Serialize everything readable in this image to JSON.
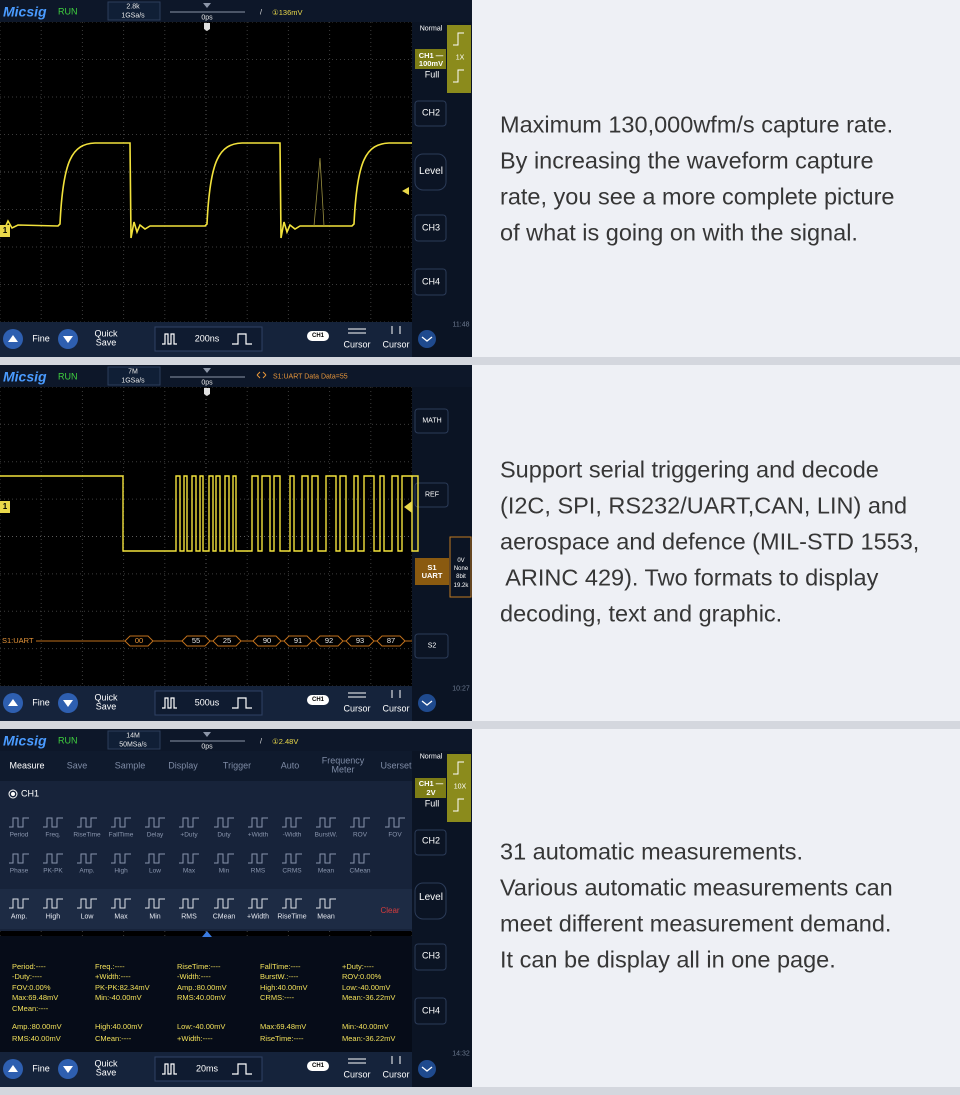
{
  "panels": [
    {
      "scope": {
        "brand": "Micsig",
        "state": "RUN",
        "memory": "2.8k",
        "rate": "1GSa/s",
        "delay": "0ps",
        "trigger_type": "/",
        "trigger": "①136mV",
        "sidebar": [
          "Normal",
          "CH1 —",
          "100mV",
          "1X",
          "Full",
          "CH2",
          "Level",
          "CH3",
          "CH4",
          "11:48"
        ],
        "channel_marker": "1",
        "bottom": {
          "fine": "Fine",
          "quick_save": "Quick Save",
          "timebase": "200ns",
          "channel": "CH1",
          "cursor_h": "Cursor",
          "cursor_v": "Cursor"
        }
      },
      "description": [
        "Maximum 130,000wfm/s capture rate.",
        "By increasing the waveform capture",
        "rate, you see a more complete picture",
        "of what is going on with the signal."
      ]
    },
    {
      "scope": {
        "brand": "Micsig",
        "state": "RUN",
        "memory": "7M",
        "rate": "1GSa/s",
        "delay": "0ps",
        "trigger": "S1:UART Data Data=55",
        "sidebar": [
          "MATH",
          "REF",
          "S1",
          "UART",
          "0V",
          "None",
          "8bit",
          "19.2k",
          "S2",
          "10:27"
        ],
        "channel_marker": "1",
        "decode_label": "S1:UART",
        "decode_bytes": [
          "00",
          "55",
          "25",
          "90",
          "91",
          "92",
          "93",
          "87"
        ],
        "bottom": {
          "fine": "Fine",
          "quick_save": "Quick Save",
          "timebase": "500us",
          "channel": "CH1",
          "cursor_h": "Cursor",
          "cursor_v": "Cursor"
        }
      },
      "description": [
        "Support serial triggering and decode",
        "(I2C, SPI, RS232/UART,CAN, LIN) and",
        "aerospace and defence (MIL-STD 1553,",
        " ARINC 429). Two formats to display",
        "decoding, text and graphic."
      ]
    },
    {
      "scope": {
        "brand": "Micsig",
        "state": "RUN",
        "memory": "14M",
        "rate": "50MSa/s",
        "delay": "0ps",
        "trigger_type": "/",
        "trigger": "①2.48V",
        "sidebar": [
          "Normal",
          "CH1 —",
          "2V",
          "10X",
          "Full",
          "CH2",
          "Level",
          "CH3",
          "CH4",
          "14:32"
        ],
        "menu_tabs": [
          "Measure",
          "Save",
          "Sample",
          "Display",
          "Trigger",
          "Auto",
          "Frequency Meter",
          "Userset"
        ],
        "channel_select": "CH1",
        "icon_rows": [
          [
            "Period",
            "Freq.",
            "RiseTime",
            "FallTime",
            "Delay",
            "+Duty",
            "Duty",
            "+Width",
            "-Width",
            "BurstW.",
            "ROV",
            "FOV"
          ],
          [
            "Phase",
            "PK-PK",
            "Amp.",
            "High",
            "Low",
            "Max",
            "Min",
            "RMS",
            "CRMS",
            "Mean",
            "CMean"
          ],
          [
            "Amp.",
            "High",
            "Low",
            "Max",
            "Min",
            "RMS",
            "CMean",
            "+Width",
            "RiseTime",
            "Mean"
          ]
        ],
        "clear": "Clear",
        "measurements": [
          [
            "Period:----",
            "-Duty:----",
            "FOV:0.00%",
            "Max:69.48mV",
            "CMean:----"
          ],
          [
            "Freq.:----",
            "+Width:----",
            "PK-PK:82.34mV",
            "Min:-40.00mV"
          ],
          [
            "RiseTime:----",
            "-Width:----",
            "Amp.:80.00mV",
            "RMS:40.00mV"
          ],
          [
            "FallTime:----",
            "BurstW.:----",
            "High:40.00mV",
            "CRMS:----"
          ],
          [
            "+Duty:----",
            "ROV:0.00%",
            "Low:-40.00mV",
            "Mean:-36.22mV"
          ]
        ],
        "selected_measurements": [
          [
            "Amp.:80.00mV",
            "RMS:40.00mV"
          ],
          [
            "High:40.00mV",
            "CMean:----"
          ],
          [
            "Low:-40.00mV",
            "+Width:----"
          ],
          [
            "Max:69.48mV",
            "RiseTime:----"
          ],
          [
            "Min:-40.00mV",
            "Mean:-36.22mV"
          ]
        ],
        "bottom": {
          "fine": "Fine",
          "quick_save": "Quick Save",
          "timebase": "20ms",
          "channel": "CH1",
          "cursor_h": "Cursor",
          "cursor_v": "Cursor"
        }
      },
      "description": [
        "31 automatic measurements.",
        "Various automatic measurements can",
        "meet different measurement demand.",
        "It can be display all in one page."
      ]
    }
  ]
}
